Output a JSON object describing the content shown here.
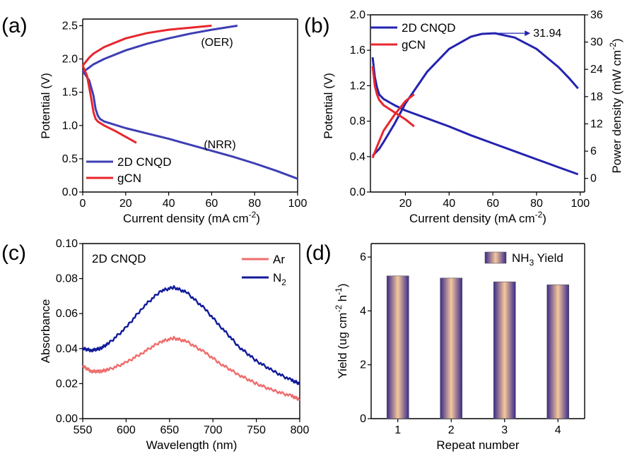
{
  "chart_data": [
    {
      "panel": "(a)",
      "type": "line",
      "xlabel": "Current density (mA cm",
      "xlabel_sup": "-2",
      "xlabel_close": ")",
      "ylabel": "Potential (V)",
      "xlim": [
        0,
        100
      ],
      "ylim": [
        0,
        2.6
      ],
      "xticks": [
        0,
        20,
        40,
        60,
        80,
        100
      ],
      "yticks": [
        0.0,
        0.5,
        1.0,
        1.5,
        2.0,
        2.5
      ],
      "annotations": [
        {
          "text": "(OER)"
        },
        {
          "text": "(NRR)"
        }
      ],
      "legend": "bottom-left",
      "series": [
        {
          "name": "2D CNQD",
          "color": "#3e3eb4",
          "segment": "OER",
          "x": [
            0,
            5,
            10,
            20,
            30,
            40,
            50,
            60,
            72
          ],
          "y": [
            1.8,
            1.92,
            2.0,
            2.13,
            2.23,
            2.31,
            2.38,
            2.44,
            2.5
          ]
        },
        {
          "name": "2D CNQD",
          "color": "#3e3eb4",
          "segment": "NRR",
          "x": [
            0,
            3,
            5,
            6,
            7,
            8,
            10,
            20,
            30,
            40,
            50,
            60,
            70,
            80,
            90,
            100
          ],
          "y": [
            1.82,
            1.68,
            1.45,
            1.25,
            1.15,
            1.1,
            1.06,
            0.96,
            0.88,
            0.8,
            0.71,
            0.62,
            0.53,
            0.43,
            0.32,
            0.2
          ]
        },
        {
          "name": "gCN",
          "color": "#e8262e",
          "segment": "OER",
          "x": [
            0,
            3,
            5,
            10,
            20,
            30,
            40,
            50,
            60
          ],
          "y": [
            1.9,
            2.02,
            2.08,
            2.18,
            2.31,
            2.39,
            2.44,
            2.47,
            2.5
          ]
        },
        {
          "name": "gCN",
          "color": "#e8262e",
          "segment": "NRR",
          "x": [
            0,
            2,
            4,
            5,
            6,
            7,
            10,
            15,
            20,
            25
          ],
          "y": [
            1.9,
            1.75,
            1.4,
            1.2,
            1.1,
            1.06,
            1.0,
            0.92,
            0.83,
            0.74
          ]
        }
      ]
    },
    {
      "panel": "(b)",
      "type": "line",
      "xlabel": "Current density (mA cm",
      "xlabel_sup": "-2",
      "xlabel_close": ")",
      "ylabel": "Potential (V)",
      "y2label": "Power density (mW cm",
      "y2label_sup": "-2",
      "y2label_close": ")",
      "xlim": [
        4,
        102
      ],
      "ylim": [
        0,
        2.0
      ],
      "y2lim": [
        -3,
        36
      ],
      "xticks": [
        20,
        40,
        60,
        80,
        100
      ],
      "yticks": [
        0.0,
        0.4,
        0.8,
        1.2,
        1.6,
        2.0
      ],
      "y2ticks": [
        0,
        6,
        12,
        18,
        24,
        30,
        36
      ],
      "peak_label": "31.94",
      "peak": {
        "x": 61,
        "y": 31.94
      },
      "legend": "top-left",
      "series": [
        {
          "name": "2D CNQD",
          "color": "#2323b0",
          "kind": "potential",
          "x": [
            5,
            6,
            7,
            8,
            10,
            15,
            20,
            30,
            40,
            50,
            60,
            70,
            80,
            90,
            99
          ],
          "y": [
            1.52,
            1.3,
            1.18,
            1.1,
            1.05,
            0.98,
            0.92,
            0.83,
            0.74,
            0.64,
            0.55,
            0.46,
            0.37,
            0.28,
            0.2
          ]
        },
        {
          "name": "2D CNQD",
          "color": "#2323b0",
          "kind": "power",
          "x": [
            5,
            8,
            10,
            15,
            20,
            30,
            40,
            50,
            55,
            61,
            70,
            80,
            90,
            95,
            99
          ],
          "y": [
            5.0,
            6.5,
            8.0,
            12.0,
            16.5,
            23.5,
            28.5,
            31.2,
            31.8,
            31.94,
            31.0,
            28.5,
            24.5,
            22.0,
            19.8
          ]
        },
        {
          "name": "gCN",
          "color": "#e8262e",
          "kind": "potential",
          "x": [
            5,
            6,
            7,
            8,
            10,
            15,
            20,
            24
          ],
          "y": [
            1.42,
            1.2,
            1.1,
            1.04,
            0.98,
            0.9,
            0.82,
            0.74
          ]
        },
        {
          "name": "gCN",
          "color": "#e8262e",
          "kind": "power",
          "x": [
            5,
            7,
            10,
            15,
            20,
            24
          ],
          "y": [
            4.5,
            7.0,
            10.5,
            14.0,
            17.0,
            18.5
          ]
        }
      ]
    },
    {
      "panel": "(c)",
      "type": "line",
      "title": "2D CNQD",
      "xlabel": "Wavelength (nm)",
      "ylabel": "Absorbance",
      "xlim": [
        550,
        800
      ],
      "ylim": [
        0.0,
        0.1
      ],
      "xticks": [
        550,
        600,
        650,
        700,
        750,
        800
      ],
      "yticks": [
        0.0,
        0.02,
        0.04,
        0.06,
        0.08,
        0.1
      ],
      "legend": "top-right",
      "series": [
        {
          "name": "Ar",
          "color": "#f06d6d",
          "x": [
            550,
            560,
            570,
            580,
            600,
            620,
            640,
            655,
            670,
            690,
            710,
            730,
            750,
            770,
            790,
            800
          ],
          "y": [
            0.03,
            0.027,
            0.027,
            0.028,
            0.032,
            0.038,
            0.044,
            0.046,
            0.044,
            0.038,
            0.031,
            0.025,
            0.02,
            0.016,
            0.013,
            0.011
          ]
        },
        {
          "name": "N_2",
          "label_main": "N",
          "label_sub": "2",
          "color": "#101a9b",
          "x": [
            550,
            560,
            570,
            580,
            600,
            620,
            640,
            655,
            670,
            690,
            710,
            730,
            750,
            770,
            790,
            800
          ],
          "y": [
            0.04,
            0.039,
            0.04,
            0.043,
            0.052,
            0.064,
            0.073,
            0.075,
            0.072,
            0.063,
            0.052,
            0.041,
            0.033,
            0.027,
            0.022,
            0.02
          ]
        }
      ]
    },
    {
      "panel": "(d)",
      "type": "bar",
      "xlabel": "Repeat number",
      "ylabel": "Yield (ug cm",
      "ylabel_sup1": "-2",
      "ylabel_mid": " h",
      "ylabel_sup2": "-1",
      "ylabel_close": ")",
      "categories": [
        "1",
        "2",
        "3",
        "4"
      ],
      "ylim": [
        0,
        6.5
      ],
      "yticks": [
        0,
        2,
        4,
        6
      ],
      "legend": "top-right",
      "series": [
        {
          "name": "NH_3 Yield",
          "label_main": "NH",
          "label_sub": "3",
          "label_tail": " Yield",
          "values": [
            5.3,
            5.22,
            5.08,
            4.97
          ]
        }
      ],
      "colors": {
        "bar_edge": "#3b2a8c",
        "bar_center": "#f5c89b"
      }
    }
  ]
}
